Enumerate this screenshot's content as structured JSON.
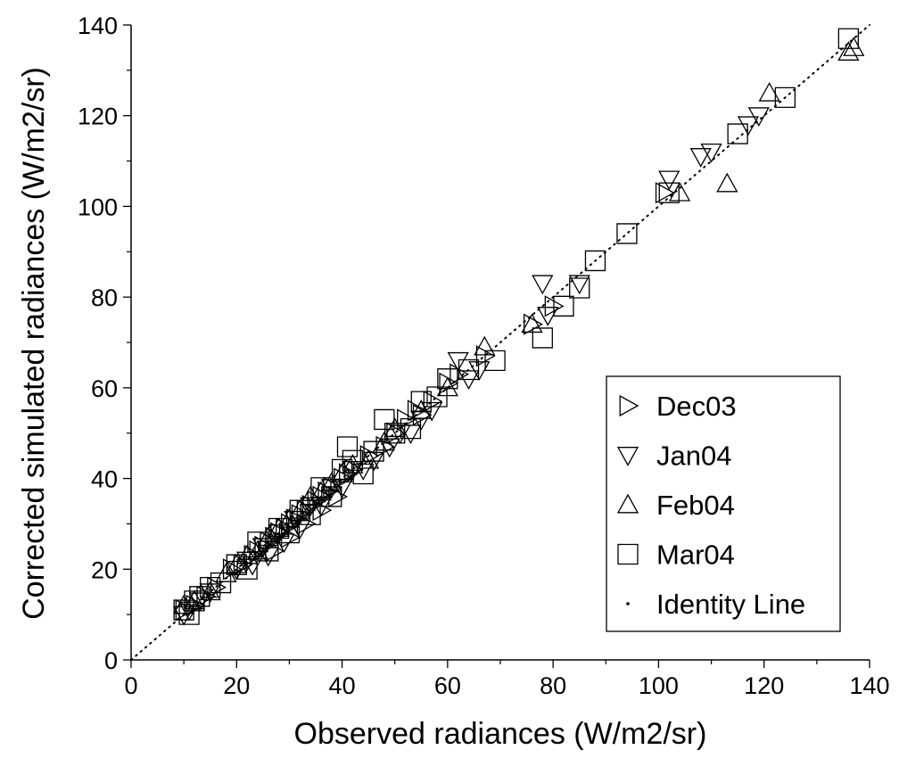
{
  "chart_data": {
    "type": "scatter",
    "title": "",
    "xlabel": "Observed radiances (W/m2/sr)",
    "ylabel": "Corrected simulated radiances (W/m2/sr)",
    "xlim": [
      0,
      140
    ],
    "ylim": [
      0,
      140
    ],
    "xticks": [
      "0",
      "20",
      "40",
      "60",
      "80",
      "100",
      "120",
      "140"
    ],
    "yticks": [
      "0",
      "20",
      "40",
      "60",
      "80",
      "100",
      "120",
      "140"
    ],
    "grid": false,
    "legend_position": "bottom-right",
    "series": [
      {
        "name": "Dec03",
        "marker": "triangle-right",
        "points": [
          [
            10,
            11
          ],
          [
            12,
            12
          ],
          [
            14,
            14
          ],
          [
            16,
            16
          ],
          [
            19,
            20
          ],
          [
            21,
            21
          ],
          [
            23,
            23
          ],
          [
            24,
            24
          ],
          [
            25,
            25
          ],
          [
            26,
            26
          ],
          [
            27,
            27
          ],
          [
            27,
            24
          ],
          [
            28,
            28
          ],
          [
            29,
            29
          ],
          [
            30,
            30
          ],
          [
            30,
            27
          ],
          [
            31,
            31
          ],
          [
            32,
            32
          ],
          [
            33,
            33
          ],
          [
            33,
            30
          ],
          [
            34,
            34
          ],
          [
            35,
            35
          ],
          [
            36,
            36
          ],
          [
            36,
            33
          ],
          [
            37,
            37
          ],
          [
            38,
            38
          ],
          [
            39,
            36
          ],
          [
            40,
            40
          ],
          [
            41,
            41
          ],
          [
            42,
            42
          ],
          [
            45,
            45
          ],
          [
            48,
            47
          ],
          [
            50,
            50
          ],
          [
            52,
            53
          ],
          [
            54,
            55
          ],
          [
            55,
            54
          ],
          [
            57,
            57
          ],
          [
            60,
            61
          ],
          [
            62,
            63
          ],
          [
            67,
            67
          ],
          [
            76,
            74
          ],
          [
            80,
            78
          ],
          [
            101,
            103
          ]
        ]
      },
      {
        "name": "Jan04",
        "marker": "triangle-down",
        "points": [
          [
            10,
            10
          ],
          [
            11,
            11
          ],
          [
            13,
            13
          ],
          [
            15,
            15
          ],
          [
            20,
            20
          ],
          [
            22,
            22
          ],
          [
            23,
            21
          ],
          [
            25,
            25
          ],
          [
            26,
            23
          ],
          [
            28,
            28
          ],
          [
            29,
            26
          ],
          [
            31,
            31
          ],
          [
            32,
            29
          ],
          [
            34,
            34
          ],
          [
            36,
            34
          ],
          [
            38,
            38
          ],
          [
            40,
            38
          ],
          [
            42,
            42
          ],
          [
            44,
            42
          ],
          [
            46,
            44
          ],
          [
            49,
            47
          ],
          [
            51,
            50
          ],
          [
            53,
            50
          ],
          [
            55,
            53
          ],
          [
            57,
            55
          ],
          [
            62,
            66
          ],
          [
            64,
            62
          ],
          [
            66,
            64
          ],
          [
            78,
            83
          ],
          [
            79,
            76
          ],
          [
            85,
            83
          ],
          [
            102,
            106
          ],
          [
            108,
            111
          ],
          [
            110,
            112
          ],
          [
            117,
            118
          ],
          [
            119,
            120
          ]
        ]
      },
      {
        "name": "Feb04",
        "marker": "triangle-up",
        "points": [
          [
            10,
            12
          ],
          [
            12,
            13
          ],
          [
            15,
            15
          ],
          [
            18,
            19
          ],
          [
            20,
            21
          ],
          [
            22,
            23
          ],
          [
            24,
            24
          ],
          [
            26,
            27
          ],
          [
            28,
            29
          ],
          [
            30,
            31
          ],
          [
            32,
            33
          ],
          [
            34,
            36
          ],
          [
            36,
            37
          ],
          [
            38,
            39
          ],
          [
            40,
            41
          ],
          [
            42,
            43
          ],
          [
            45,
            44
          ],
          [
            48,
            48
          ],
          [
            50,
            51
          ],
          [
            55,
            55
          ],
          [
            60,
            60
          ],
          [
            67,
            69
          ],
          [
            76,
            74
          ],
          [
            104,
            103
          ],
          [
            113,
            105
          ],
          [
            121,
            125
          ],
          [
            136,
            134
          ],
          [
            137,
            135
          ]
        ]
      },
      {
        "name": "Mar04",
        "marker": "square",
        "points": [
          [
            10,
            11
          ],
          [
            11,
            10
          ],
          [
            12,
            13
          ],
          [
            13,
            14
          ],
          [
            15,
            16
          ],
          [
            17,
            17
          ],
          [
            20,
            21
          ],
          [
            22,
            20
          ],
          [
            24,
            26
          ],
          [
            26,
            24
          ],
          [
            28,
            29
          ],
          [
            30,
            28
          ],
          [
            32,
            33
          ],
          [
            34,
            32
          ],
          [
            36,
            38
          ],
          [
            38,
            36
          ],
          [
            40,
            42
          ],
          [
            41,
            47
          ],
          [
            42,
            44
          ],
          [
            44,
            41
          ],
          [
            46,
            46
          ],
          [
            48,
            53
          ],
          [
            50,
            50
          ],
          [
            53,
            51
          ],
          [
            55,
            57
          ],
          [
            58,
            58
          ],
          [
            60,
            62
          ],
          [
            64,
            64
          ],
          [
            69,
            66
          ],
          [
            78,
            71
          ],
          [
            82,
            78
          ],
          [
            85,
            82
          ],
          [
            88,
            88
          ],
          [
            94,
            94
          ],
          [
            102,
            103
          ],
          [
            115,
            116
          ],
          [
            124,
            124
          ],
          [
            136,
            137
          ]
        ]
      },
      {
        "name": "Identity Line",
        "marker": "dot",
        "points": [
          [
            0,
            0
          ],
          [
            140,
            140
          ]
        ]
      }
    ]
  }
}
